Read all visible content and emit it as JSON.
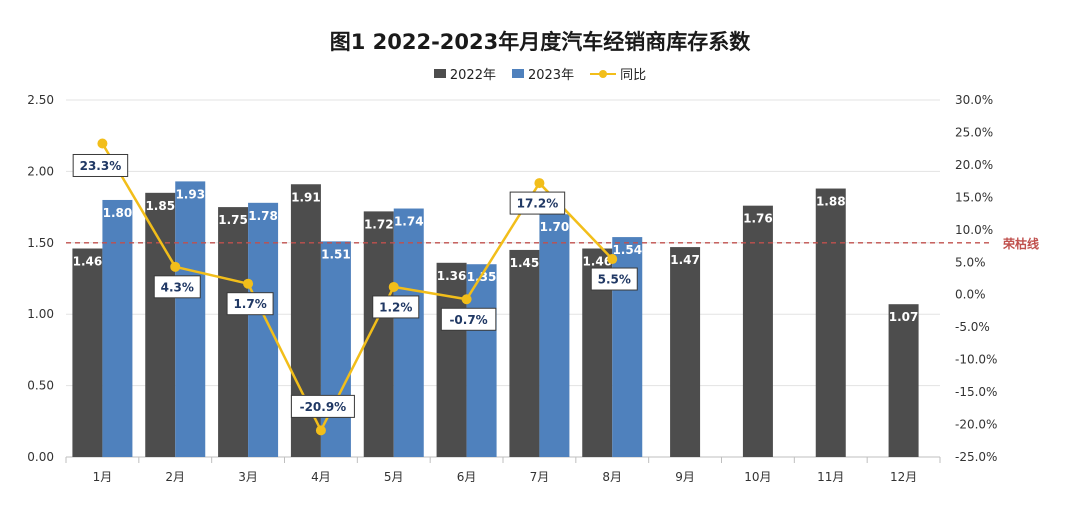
{
  "title": "图1  2022-2023年月度汽车经销商库存系数",
  "legend": {
    "item_2022": "2022年",
    "item_2023": "2023年",
    "item_yoy": "同比"
  },
  "colors": {
    "bar_2022": "#4d4d4d",
    "bar_2023": "#4f81bd",
    "line_yoy": "#f2be1a",
    "reference": "#c0504d",
    "label_text": "#203864"
  },
  "reference_label": "荣枯线",
  "chart_data": {
    "type": "bar",
    "categories": [
      "1月",
      "2月",
      "3月",
      "4月",
      "5月",
      "6月",
      "7月",
      "8月",
      "9月",
      "10月",
      "11月",
      "12月"
    ],
    "series": [
      {
        "name": "2022年",
        "type": "bar",
        "axis": "left",
        "values": [
          1.46,
          1.85,
          1.75,
          1.91,
          1.72,
          1.36,
          1.45,
          1.46,
          1.47,
          1.76,
          1.88,
          1.07
        ],
        "labels": [
          "1.46",
          "1.85",
          "1.75",
          "1.91",
          "1.72",
          "1.36",
          "1.45",
          "1.46",
          "1.47",
          "1.76",
          "1.88",
          "1.07"
        ]
      },
      {
        "name": "2023年",
        "type": "bar",
        "axis": "left",
        "values": [
          1.8,
          1.93,
          1.78,
          1.51,
          1.74,
          1.35,
          1.7,
          1.54,
          null,
          null,
          null,
          null
        ],
        "labels": [
          "1.80",
          "1.93",
          "1.78",
          "1.51",
          "1.74",
          "1.35",
          "1.70",
          "1.54",
          "",
          "",
          "",
          ""
        ]
      },
      {
        "name": "同比",
        "type": "line",
        "axis": "right",
        "values": [
          23.3,
          4.3,
          1.7,
          -20.9,
          1.2,
          -0.7,
          17.2,
          5.5,
          null,
          null,
          null,
          null
        ],
        "labels": [
          "23.3%",
          "4.3%",
          "1.7%",
          "-20.9%",
          "1.2%",
          "-0.7%",
          "17.2%",
          "5.5%",
          "",
          "",
          "",
          ""
        ]
      }
    ],
    "y_left": {
      "min": 0,
      "max": 2.5,
      "ticks": [
        "0.00",
        "0.50",
        "1.00",
        "1.50",
        "2.00",
        "2.50"
      ]
    },
    "y_right": {
      "min": -25,
      "max": 30,
      "ticks": [
        "-25.0%",
        "-20.0%",
        "-15.0%",
        "-10.0%",
        "-5.0%",
        "0.0%",
        "5.0%",
        "10.0%",
        "15.0%",
        "20.0%",
        "25.0%",
        "30.0%"
      ]
    },
    "reference_line": {
      "value": 1.5,
      "label": "荣枯线"
    },
    "grid": true,
    "legend_position": "top-center"
  }
}
